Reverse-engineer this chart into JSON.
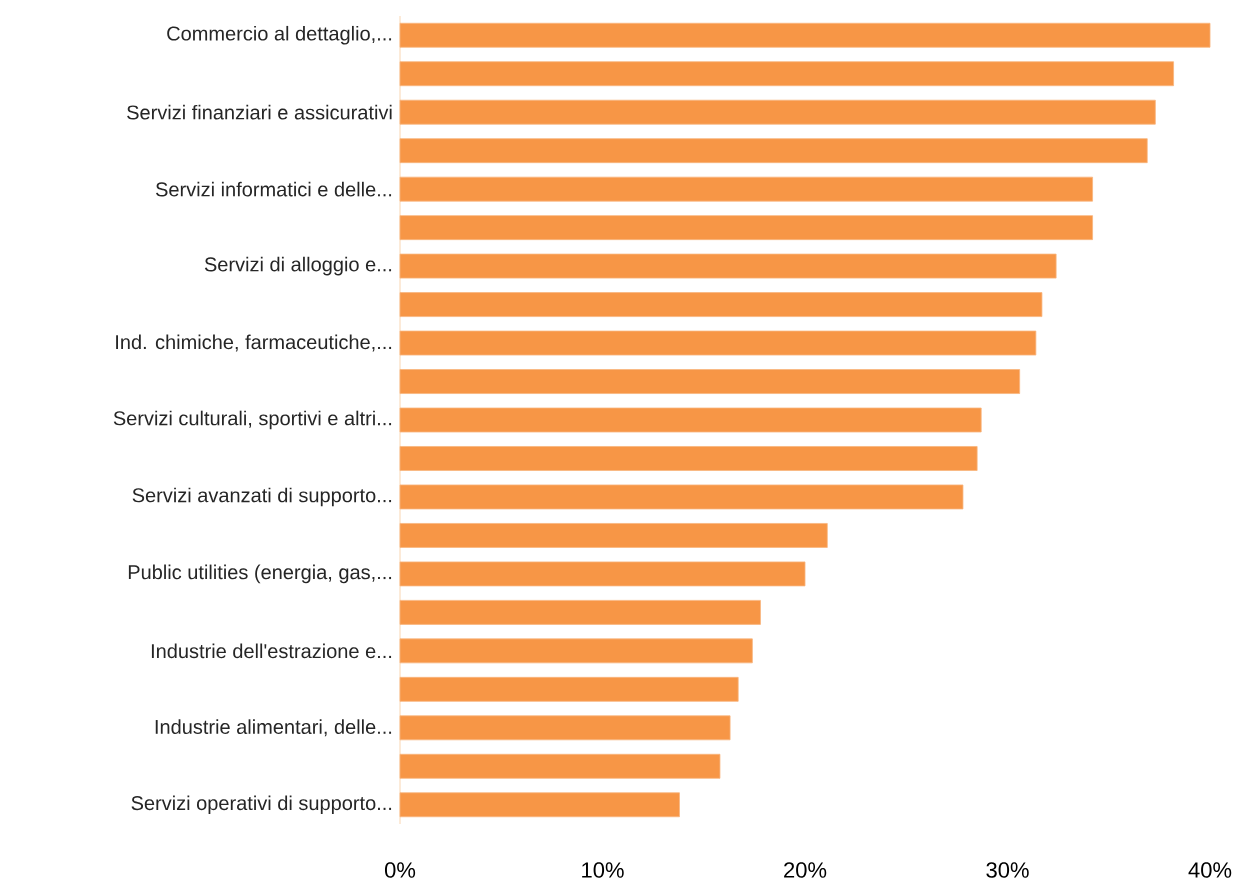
{
  "chart_data": {
    "type": "bar",
    "orientation": "horizontal",
    "categories": [
      "Commercio al dettaglio,...",
      null,
      "Servizi finanziari e assicurativi",
      null,
      "Servizi informatici e delle...",
      null,
      "Servizi di alloggio e...",
      null,
      "Ind. chimiche, farmaceutiche,...",
      null,
      "Servizi culturali, sportivi e altri...",
      null,
      "Servizi avanzati di supporto...",
      null,
      "Public utilities (energia, gas,...",
      null,
      "Industrie dell'estrazione e...",
      null,
      "Industrie alimentari, delle...",
      null,
      "Servizi operativi di supporto..."
    ],
    "values": [
      40.0,
      38.2,
      37.3,
      36.9,
      34.2,
      34.2,
      32.4,
      31.7,
      31.4,
      30.6,
      28.7,
      28.5,
      27.8,
      21.1,
      20.0,
      17.8,
      17.4,
      16.7,
      16.3,
      15.8,
      13.8
    ],
    "color": "#f79646",
    "xlim": [
      0,
      40
    ],
    "xticks": [
      {
        "value": 0,
        "label": "0%"
      },
      {
        "value": 10,
        "label": "10%"
      },
      {
        "value": 20,
        "label": "20%"
      },
      {
        "value": 30,
        "label": "30%"
      },
      {
        "value": 40,
        "label": "40%"
      }
    ],
    "grid": false
  }
}
